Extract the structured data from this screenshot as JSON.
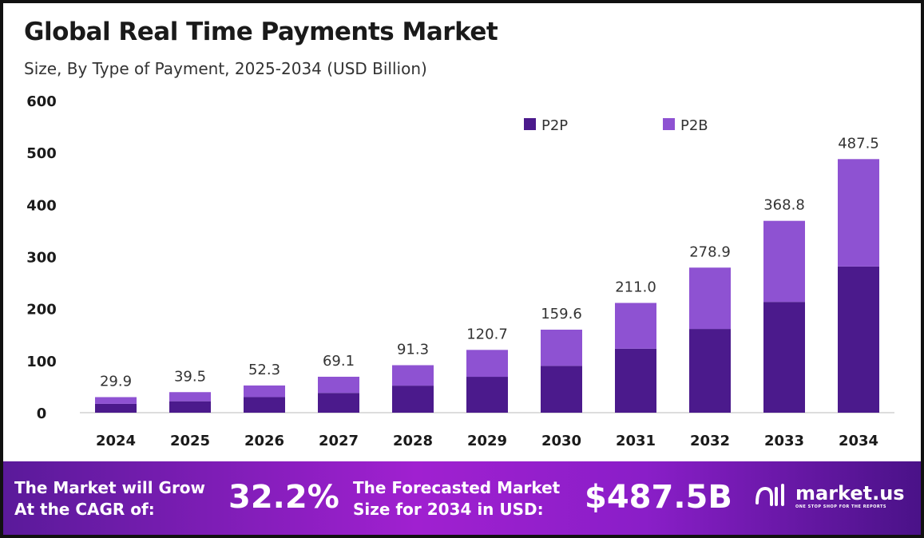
{
  "title": "Global Real Time Payments Market",
  "subtitle": "Size, By Type of Payment, 2025-2034 (USD Billion)",
  "chart_data": {
    "type": "bar",
    "stacked": true,
    "categories": [
      "2024",
      "2025",
      "2026",
      "2027",
      "2028",
      "2029",
      "2030",
      "2031",
      "2032",
      "2033",
      "2034"
    ],
    "series": [
      {
        "name": "P2P",
        "color": "#4b1a8c",
        "values": [
          17,
          22,
          30,
          38,
          52,
          69,
          90,
          123,
          161,
          213,
          281
        ]
      },
      {
        "name": "P2B",
        "color": "#8e52d2",
        "values": [
          12.9,
          17.5,
          22.3,
          31.1,
          39.3,
          51.7,
          69.6,
          88.0,
          117.9,
          155.8,
          206.5
        ]
      }
    ],
    "totals": [
      "29.9",
      "39.5",
      "52.3",
      "69.1",
      "91.3",
      "120.7",
      "159.6",
      "211.0",
      "278.9",
      "368.8",
      "487.5"
    ],
    "yticks": [
      "0",
      "100",
      "200",
      "300",
      "400",
      "500",
      "600"
    ],
    "ylim": [
      0,
      600
    ],
    "grid": false,
    "legend": "top-right"
  },
  "footer": {
    "cagr_label_1": "The Market will Grow",
    "cagr_label_2": "At the CAGR of:",
    "cagr_value": "32.2%",
    "forecast_label_1": "The Forecasted Market",
    "forecast_label_2": "Size for 2034 in USD:",
    "forecast_value": "$487.5B",
    "logo_text": "market.us",
    "logo_tagline": "ONE STOP SHOP FOR THE REPORTS"
  }
}
